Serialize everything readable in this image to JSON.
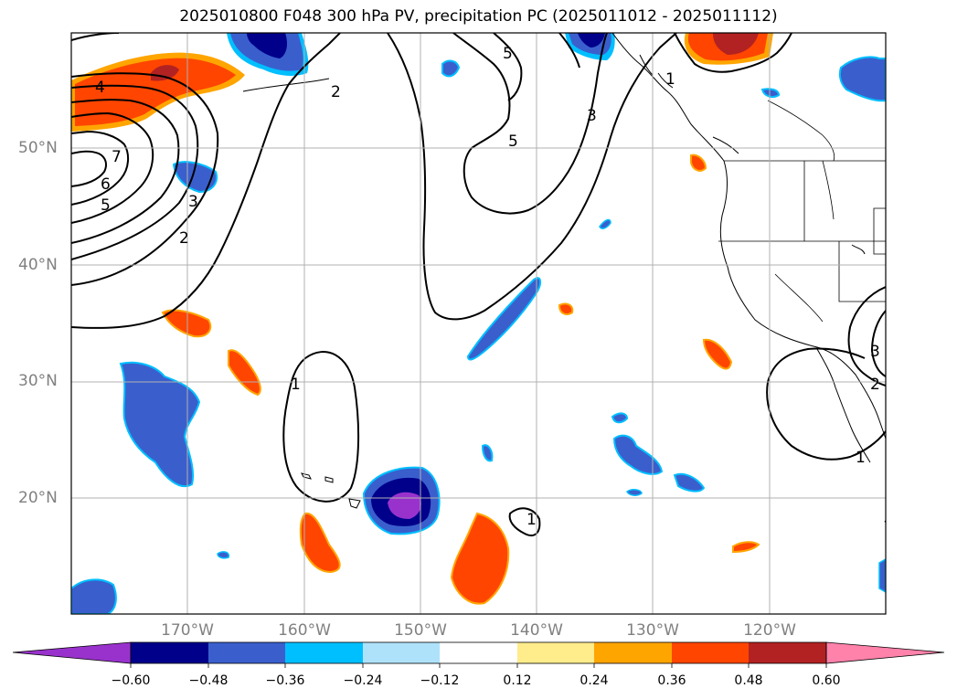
{
  "title": "2025010800 F048 300 hPa PV, precipitation PC (2025011012 - 2025011112)",
  "axes": {
    "lat_labels": [
      "50°N",
      "40°N",
      "30°N",
      "20°N"
    ],
    "lon_labels": [
      "170°W",
      "160°W",
      "150°W",
      "140°W",
      "130°W",
      "120°W"
    ]
  },
  "contour_labels": {
    "pv_4": "4",
    "pv_7": "7",
    "pv_6": "6",
    "pv_5a": "5",
    "pv_3a": "3",
    "pv_2a": "2",
    "pv_2b": "2",
    "pv_5b": "5",
    "pv_5c": "5",
    "pv_3b": "3",
    "pv_1a": "1",
    "pv_1b": "1",
    "pv_1c": "1",
    "pv_1d": "1",
    "pv_2c": "2",
    "pv_3c": "3"
  },
  "colorbar": {
    "ticks": [
      "−0.60",
      "−0.48",
      "−0.36",
      "−0.24",
      "−0.12",
      "0.12",
      "0.24",
      "0.36",
      "0.48",
      "0.60"
    ],
    "colors": [
      "#9932cc",
      "#00008b",
      "#3a5fcd",
      "#00bfff",
      "#aee2fa",
      "#ffffff",
      "#ffec8b",
      "#ffa500",
      "#ff4500",
      "#b22222",
      "#ff82ab"
    ]
  },
  "colors": {
    "neg_strong": "#00008b",
    "neg_mid": "#3a5fcd",
    "neg_light": "#00bfff",
    "pos_mid": "#ff4500",
    "pos_strong": "#b22222",
    "pos_light": "#ffa500",
    "purple": "#9932cc"
  }
}
